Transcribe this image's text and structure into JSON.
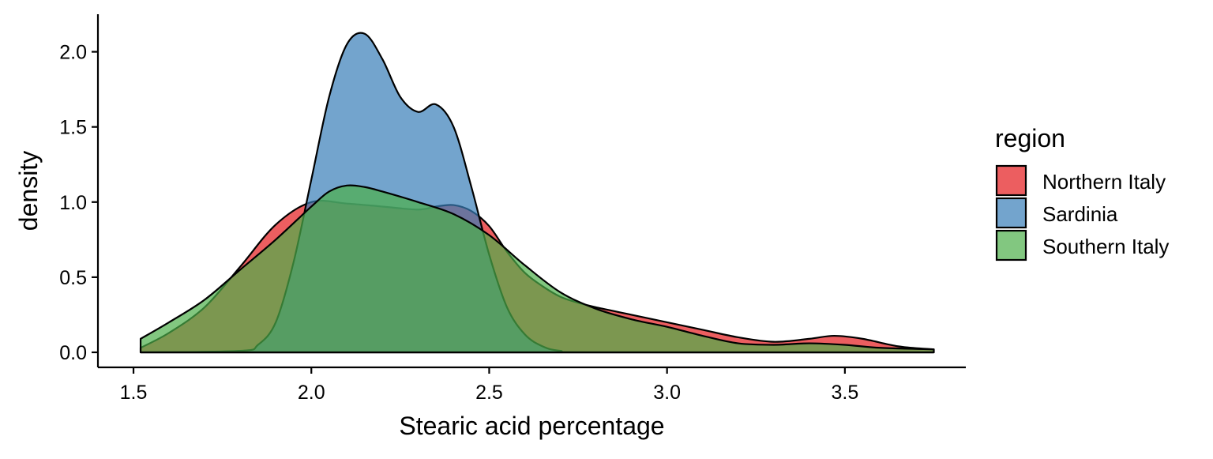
{
  "chart_data": {
    "type": "area",
    "title": "",
    "xlabel": "Stearic acid percentage",
    "ylabel": "density",
    "xlim": [
      1.4,
      3.84
    ],
    "ylim": [
      -0.1,
      2.25
    ],
    "x_ticks": [
      1.5,
      2.0,
      2.5,
      3.0,
      3.5
    ],
    "x_tick_labels": [
      "1.5",
      "2.0",
      "2.5",
      "3.0",
      "3.5"
    ],
    "y_ticks": [
      0.0,
      0.5,
      1.0,
      1.5,
      2.0
    ],
    "y_tick_labels": [
      "0.0",
      "0.5",
      "1.0",
      "1.5",
      "2.0"
    ],
    "grid": false,
    "legend_title": "region",
    "legend_position": "right",
    "fill_opacity": 0.7,
    "series": [
      {
        "name": "Northern Italy",
        "color": "#E41A1C",
        "points": [
          [
            1.52,
            0.03
          ],
          [
            1.6,
            0.13
          ],
          [
            1.7,
            0.3
          ],
          [
            1.8,
            0.57
          ],
          [
            1.9,
            0.85
          ],
          [
            2.0,
            1.0
          ],
          [
            2.1,
            0.99
          ],
          [
            2.2,
            0.97
          ],
          [
            2.3,
            0.95
          ],
          [
            2.35,
            0.97
          ],
          [
            2.4,
            0.98
          ],
          [
            2.45,
            0.94
          ],
          [
            2.5,
            0.84
          ],
          [
            2.55,
            0.67
          ],
          [
            2.6,
            0.53
          ],
          [
            2.65,
            0.44
          ],
          [
            2.7,
            0.37
          ],
          [
            2.75,
            0.33
          ],
          [
            2.8,
            0.3
          ],
          [
            2.9,
            0.25
          ],
          [
            3.0,
            0.2
          ],
          [
            3.1,
            0.15
          ],
          [
            3.2,
            0.1
          ],
          [
            3.3,
            0.07
          ],
          [
            3.4,
            0.09
          ],
          [
            3.47,
            0.11
          ],
          [
            3.55,
            0.09
          ],
          [
            3.65,
            0.04
          ],
          [
            3.75,
            0.02
          ]
        ]
      },
      {
        "name": "Sardinia",
        "color": "#377EB8",
        "points": [
          [
            1.52,
            0.0
          ],
          [
            1.8,
            0.01
          ],
          [
            1.85,
            0.05
          ],
          [
            1.9,
            0.2
          ],
          [
            1.95,
            0.6
          ],
          [
            2.0,
            1.15
          ],
          [
            2.05,
            1.7
          ],
          [
            2.1,
            2.05
          ],
          [
            2.15,
            2.12
          ],
          [
            2.2,
            1.95
          ],
          [
            2.25,
            1.7
          ],
          [
            2.3,
            1.6
          ],
          [
            2.35,
            1.65
          ],
          [
            2.4,
            1.5
          ],
          [
            2.45,
            1.1
          ],
          [
            2.5,
            0.65
          ],
          [
            2.55,
            0.3
          ],
          [
            2.6,
            0.12
          ],
          [
            2.65,
            0.04
          ],
          [
            2.7,
            0.01
          ],
          [
            2.8,
            0.0
          ],
          [
            3.75,
            0.0
          ]
        ]
      },
      {
        "name": "Southern Italy",
        "color": "#4DAF4A",
        "points": [
          [
            1.52,
            0.09
          ],
          [
            1.6,
            0.2
          ],
          [
            1.7,
            0.35
          ],
          [
            1.8,
            0.55
          ],
          [
            1.9,
            0.75
          ],
          [
            2.0,
            0.97
          ],
          [
            2.05,
            1.07
          ],
          [
            2.1,
            1.11
          ],
          [
            2.15,
            1.1
          ],
          [
            2.2,
            1.07
          ],
          [
            2.3,
            1.0
          ],
          [
            2.4,
            0.92
          ],
          [
            2.5,
            0.78
          ],
          [
            2.6,
            0.58
          ],
          [
            2.7,
            0.4
          ],
          [
            2.8,
            0.29
          ],
          [
            2.9,
            0.22
          ],
          [
            3.0,
            0.17
          ],
          [
            3.1,
            0.11
          ],
          [
            3.2,
            0.06
          ],
          [
            3.3,
            0.05
          ],
          [
            3.4,
            0.06
          ],
          [
            3.5,
            0.05
          ],
          [
            3.6,
            0.03
          ],
          [
            3.75,
            0.02
          ]
        ]
      }
    ]
  }
}
